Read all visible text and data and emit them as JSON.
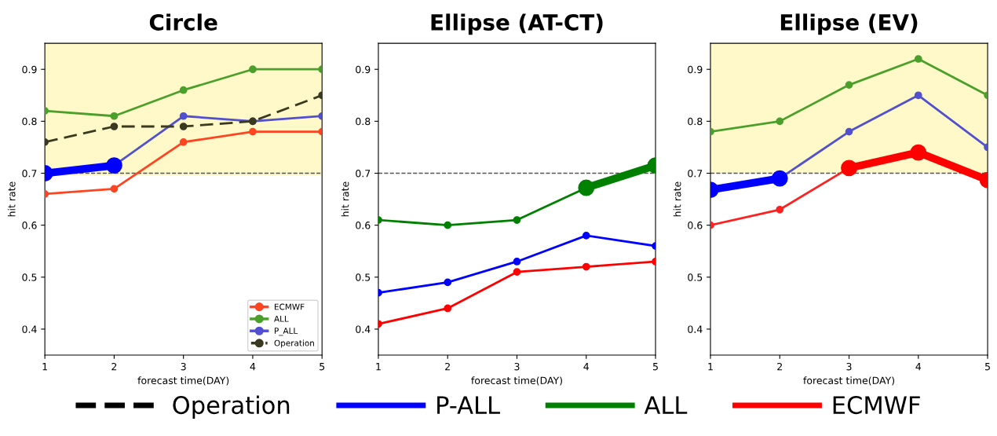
{
  "chart_data": [
    {
      "type": "line",
      "title": "Circle",
      "xlabel": "forecast time(DAY)",
      "ylabel": "hit rate",
      "x": [
        1,
        2,
        3,
        4,
        5
      ],
      "xlim": [
        1,
        5
      ],
      "xticks": [
        1,
        2,
        3,
        4,
        5
      ],
      "ylim": [
        0.35,
        0.95
      ],
      "yticks": [
        0.4,
        0.5,
        0.6,
        0.7,
        0.8,
        0.9
      ],
      "marker": "circle",
      "legend": "bottom right",
      "ref_lines": [
        {
          "axis": "y",
          "value": 0.7,
          "color": "#555555",
          "line_style": "dashed"
        }
      ],
      "bands": [
        {
          "axis": "y",
          "from": 0.695,
          "to": 0.95,
          "color": "#fff8c8"
        }
      ],
      "series": [
        {
          "name": "ECMWF",
          "color": "#ff4422",
          "values": [
            0.66,
            0.67,
            0.76,
            0.78,
            0.78
          ]
        },
        {
          "name": "ALL",
          "color": "#4aa02a",
          "values": [
            0.82,
            0.81,
            0.86,
            0.9,
            0.9
          ]
        },
        {
          "name": "P_ALL",
          "color": "#5050d0",
          "values": [
            null,
            0.715,
            0.81,
            0.8,
            0.81
          ]
        },
        {
          "name": "Operation",
          "color": "#3a3a20",
          "line_style": "dashed",
          "values": [
            0.76,
            0.79,
            0.79,
            0.8,
            0.85
          ]
        },
        {
          "color": "#0000ff",
          "marker": "circle",
          "values": [
            0.7,
            0.715,
            null,
            null,
            null
          ]
        }
      ]
    },
    {
      "type": "line",
      "title": "Ellipse (AT-CT)",
      "xlabel": "forecast time(DAY)",
      "ylabel": "hit rate",
      "x": [
        1,
        2,
        3,
        4,
        5
      ],
      "xlim": [
        1,
        5
      ],
      "xticks": [
        1,
        2,
        3,
        4,
        5
      ],
      "ylim": [
        0.35,
        0.95
      ],
      "yticks": [
        0.4,
        0.5,
        0.6,
        0.7,
        0.8,
        0.9
      ],
      "marker": "circle",
      "legend": "bottom",
      "ref_lines": [
        {
          "axis": "y",
          "value": 0.7,
          "color": "#555555",
          "line_style": "dashed"
        }
      ],
      "series": [
        {
          "name": "Operation",
          "color": "#000000",
          "line_style": "dashed",
          "values": [
            null,
            null,
            null,
            null,
            null
          ]
        },
        {
          "name": "P-ALL",
          "color": "#0000ff",
          "values": [
            0.47,
            0.49,
            0.53,
            0.58,
            0.56
          ]
        },
        {
          "name": "ALL",
          "color": "#008000",
          "values": [
            0.61,
            0.6,
            0.61,
            0.672,
            null
          ]
        },
        {
          "name": "ECMWF",
          "color": "#ff0000",
          "values": [
            0.41,
            0.44,
            0.51,
            0.52,
            0.53
          ]
        },
        {
          "color": "#008000",
          "marker": "circle",
          "values": [
            null,
            null,
            null,
            0.672,
            0.715
          ]
        }
      ]
    },
    {
      "type": "line",
      "title": "Ellipse (EV)",
      "xlabel": "forecast time(DAY)",
      "ylabel": "hit rate",
      "x": [
        1,
        2,
        3,
        4,
        5
      ],
      "xlim": [
        1,
        5
      ],
      "xticks": [
        1,
        2,
        3,
        4,
        5
      ],
      "ylim": [
        0.35,
        0.95
      ],
      "yticks": [
        0.4,
        0.5,
        0.6,
        0.7,
        0.8,
        0.9
      ],
      "marker": "circle",
      "ref_lines": [
        {
          "axis": "y",
          "value": 0.7,
          "color": "#555555",
          "line_style": "dashed"
        }
      ],
      "bands": [
        {
          "axis": "y",
          "from": 0.7,
          "to": 0.95,
          "color": "#fff8c8"
        }
      ],
      "series": [
        {
          "color": "#4aa02a",
          "values": [
            0.78,
            0.8,
            0.87,
            0.92,
            0.85
          ]
        },
        {
          "color": "#5050d0",
          "values": [
            null,
            0.69,
            0.78,
            0.85,
            0.75
          ]
        },
        {
          "color": "#ff2020",
          "values": [
            0.6,
            0.63,
            0.71,
            null,
            null
          ]
        },
        {
          "color": "#0000ff",
          "marker": "circle",
          "values": [
            0.668,
            0.69,
            null,
            null,
            null
          ]
        },
        {
          "color": "#ff0000",
          "marker": "circle",
          "values": [
            null,
            null,
            0.71,
            0.74,
            0.687
          ]
        }
      ]
    }
  ]
}
